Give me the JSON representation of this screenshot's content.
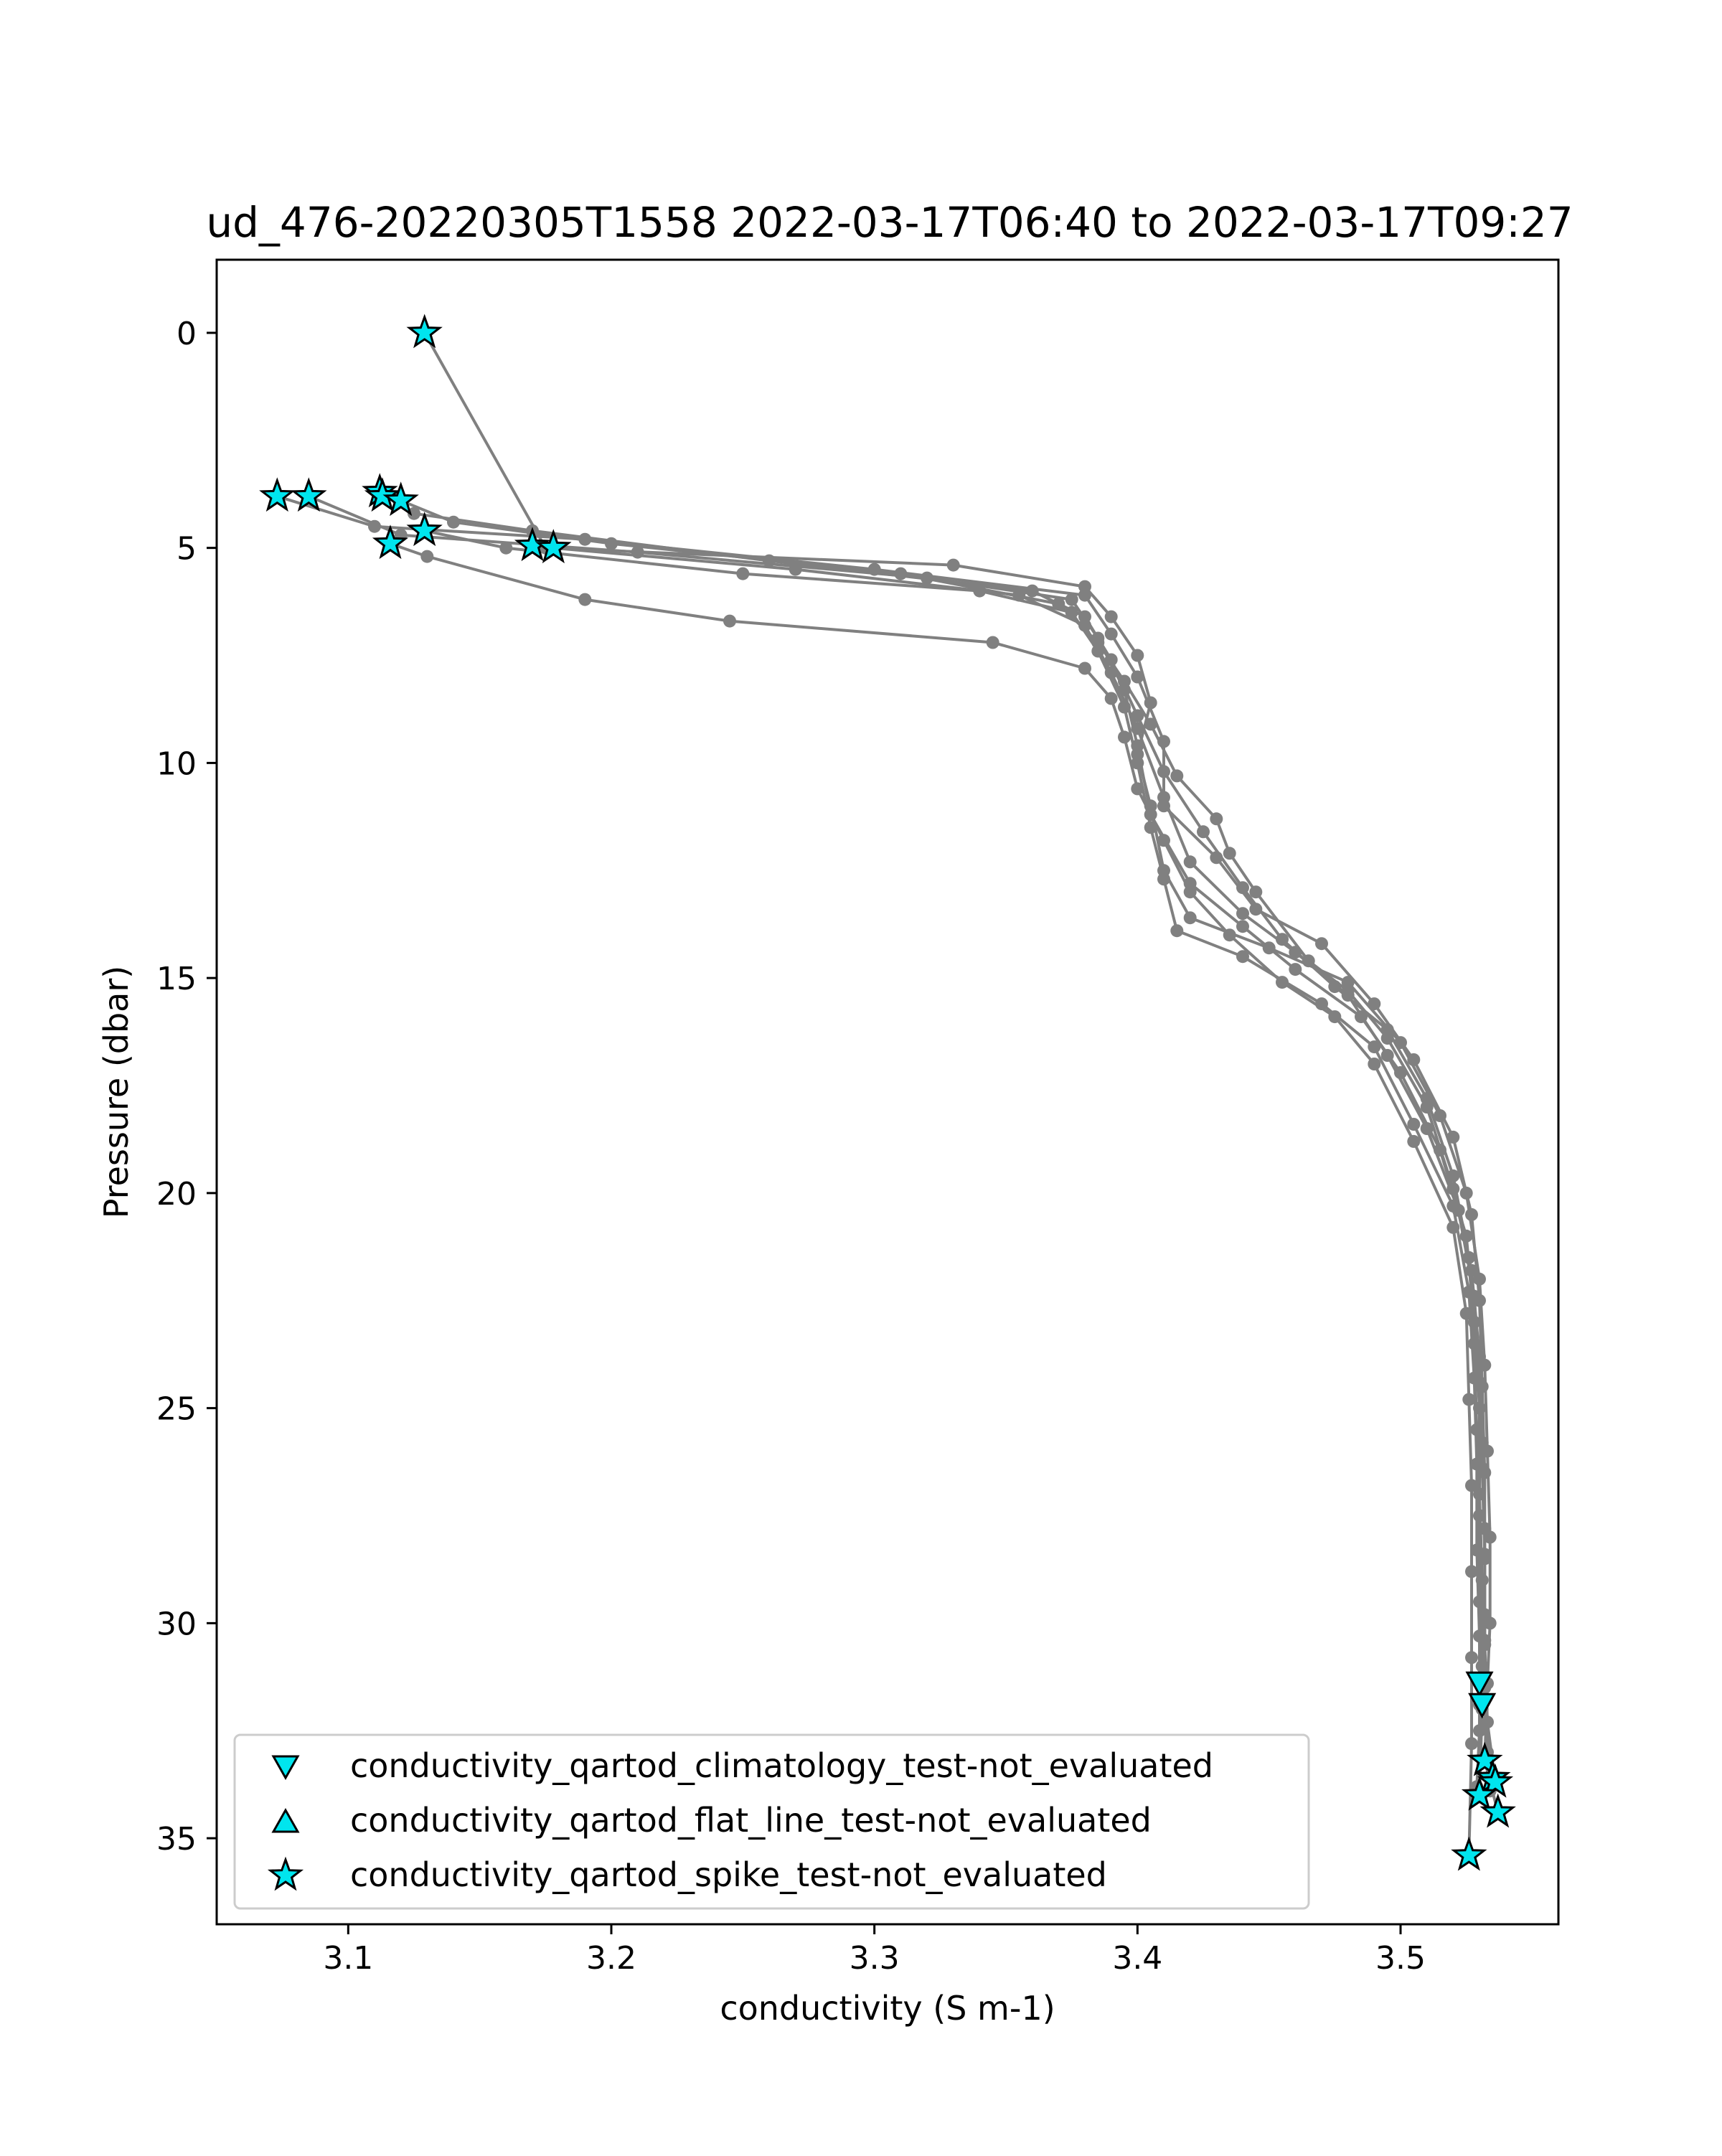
{
  "chart_data": {
    "type": "line",
    "title": "ud_476-20220305T1558 2022-03-17T06:40 to 2022-03-17T09:27",
    "xlabel": "conductivity (S m-1)",
    "ylabel": "Pressure (dbar)",
    "xlim": [
      3.05,
      3.56
    ],
    "ylim": [
      37.0,
      -1.7
    ],
    "y_inverted": true,
    "grid": false,
    "legend_position": "lower-left",
    "xticks": [
      3.1,
      3.2,
      3.3,
      3.4,
      3.5
    ],
    "xtick_labels": [
      "3.1",
      "3.2",
      "3.3",
      "3.4",
      "3.5"
    ],
    "yticks": [
      0,
      5,
      10,
      15,
      20,
      25,
      30,
      35
    ],
    "ytick_labels": [
      "0",
      "5",
      "10",
      "15",
      "20",
      "25",
      "30",
      "35"
    ],
    "colors": {
      "profile": "#808080",
      "flag_fill": "#00e5ee",
      "flag_edge": "#000000"
    },
    "profiles": [
      {
        "points": [
          [
            3.129,
            0.0
          ],
          [
            3.175,
            5.0
          ],
          [
            3.33,
            5.4
          ],
          [
            3.38,
            5.9
          ],
          [
            3.39,
            6.6
          ],
          [
            3.4,
            7.5
          ],
          [
            3.405,
            8.6
          ],
          [
            3.4,
            9.8
          ],
          [
            3.405,
            11.0
          ],
          [
            3.41,
            12.5
          ],
          [
            3.42,
            13.6
          ],
          [
            3.45,
            14.3
          ],
          [
            3.48,
            15.1
          ],
          [
            3.5,
            16.5
          ],
          [
            3.515,
            18.2
          ],
          [
            3.525,
            20.0
          ],
          [
            3.53,
            22.0
          ],
          [
            3.532,
            24.0
          ],
          [
            3.533,
            26.0
          ],
          [
            3.534,
            28.0
          ],
          [
            3.534,
            30.0
          ],
          [
            3.533,
            31.4
          ],
          [
            3.532,
            33.2
          ],
          [
            3.537,
            34.4
          ]
        ]
      },
      {
        "points": [
          [
            3.073,
            3.8
          ],
          [
            3.11,
            4.5
          ],
          [
            3.19,
            4.8
          ],
          [
            3.3,
            5.5
          ],
          [
            3.38,
            6.1
          ],
          [
            3.39,
            7.0
          ],
          [
            3.4,
            8.0
          ],
          [
            3.41,
            9.5
          ],
          [
            3.41,
            11.0
          ],
          [
            3.43,
            12.2
          ],
          [
            3.445,
            13.4
          ],
          [
            3.47,
            14.2
          ],
          [
            3.49,
            15.6
          ],
          [
            3.505,
            16.9
          ],
          [
            3.52,
            18.7
          ],
          [
            3.527,
            20.5
          ],
          [
            3.53,
            22.5
          ],
          [
            3.531,
            24.5
          ],
          [
            3.532,
            26.5
          ],
          [
            3.532,
            28.5
          ],
          [
            3.532,
            30.5
          ],
          [
            3.531,
            32.0
          ],
          [
            3.53,
            34.0
          ]
        ]
      },
      {
        "points": [
          [
            3.085,
            3.8
          ],
          [
            3.12,
            4.7
          ],
          [
            3.21,
            5.1
          ],
          [
            3.32,
            5.7
          ],
          [
            3.375,
            6.2
          ],
          [
            3.385,
            7.1
          ],
          [
            3.395,
            8.3
          ],
          [
            3.4,
            9.6
          ],
          [
            3.405,
            11.2
          ],
          [
            3.42,
            12.8
          ],
          [
            3.44,
            13.8
          ],
          [
            3.46,
            14.8
          ],
          [
            3.485,
            15.9
          ],
          [
            3.5,
            17.2
          ],
          [
            3.515,
            19.0
          ],
          [
            3.525,
            21.0
          ],
          [
            3.528,
            23.0
          ],
          [
            3.53,
            25.0
          ],
          [
            3.53,
            27.0
          ],
          [
            3.531,
            29.0
          ],
          [
            3.531,
            31.0
          ],
          [
            3.533,
            33.0
          ],
          [
            3.535,
            33.6
          ]
        ]
      },
      {
        "points": [
          [
            3.112,
            3.7
          ],
          [
            3.125,
            4.2
          ],
          [
            3.17,
            4.6
          ],
          [
            3.26,
            5.3
          ],
          [
            3.36,
            6.0
          ],
          [
            3.38,
            6.6
          ],
          [
            3.39,
            7.6
          ],
          [
            3.4,
            8.9
          ],
          [
            3.41,
            10.2
          ],
          [
            3.425,
            11.6
          ],
          [
            3.44,
            12.9
          ],
          [
            3.455,
            14.1
          ],
          [
            3.475,
            15.2
          ],
          [
            3.495,
            16.2
          ],
          [
            3.51,
            17.8
          ],
          [
            3.52,
            19.6
          ],
          [
            3.526,
            21.5
          ],
          [
            3.528,
            23.5
          ],
          [
            3.529,
            25.5
          ],
          [
            3.53,
            27.5
          ],
          [
            3.53,
            29.5
          ],
          [
            3.53,
            31.9
          ]
        ]
      },
      {
        "points": [
          [
            3.12,
            3.9
          ],
          [
            3.14,
            4.4
          ],
          [
            3.2,
            4.9
          ],
          [
            3.31,
            5.6
          ],
          [
            3.37,
            6.3
          ],
          [
            3.385,
            7.2
          ],
          [
            3.395,
            8.1
          ],
          [
            3.405,
            9.1
          ],
          [
            3.415,
            10.3
          ],
          [
            3.43,
            11.3
          ],
          [
            3.435,
            12.1
          ],
          [
            3.445,
            13.0
          ],
          [
            3.465,
            14.6
          ],
          [
            3.48,
            15.3
          ],
          [
            3.495,
            16.4
          ],
          [
            3.51,
            18.0
          ],
          [
            3.52,
            19.9
          ],
          [
            3.527,
            21.8
          ],
          [
            3.53,
            23.8
          ],
          [
            3.531,
            25.8
          ],
          [
            3.532,
            27.8
          ],
          [
            3.532,
            29.8
          ],
          [
            3.532,
            31.5
          ],
          [
            3.534,
            33.9
          ]
        ]
      },
      {
        "points": [
          [
            3.129,
            4.6
          ],
          [
            3.16,
            5.0
          ],
          [
            3.25,
            5.6
          ],
          [
            3.34,
            6.0
          ],
          [
            3.375,
            6.5
          ],
          [
            3.385,
            7.4
          ],
          [
            3.395,
            8.7
          ],
          [
            3.4,
            10.0
          ],
          [
            3.405,
            11.5
          ],
          [
            3.41,
            12.7
          ],
          [
            3.415,
            13.9
          ],
          [
            3.44,
            14.5
          ],
          [
            3.47,
            15.6
          ],
          [
            3.49,
            16.6
          ],
          [
            3.505,
            18.4
          ],
          [
            3.52,
            20.3
          ],
          [
            3.526,
            22.3
          ],
          [
            3.528,
            24.3
          ],
          [
            3.529,
            26.3
          ],
          [
            3.529,
            28.3
          ],
          [
            3.53,
            30.3
          ],
          [
            3.53,
            32.5
          ],
          [
            3.529,
            33.8
          ]
        ]
      },
      {
        "points": [
          [
            3.116,
            4.9
          ],
          [
            3.13,
            5.2
          ],
          [
            3.19,
            6.2
          ],
          [
            3.245,
            6.7
          ],
          [
            3.345,
            7.2
          ],
          [
            3.38,
            7.8
          ],
          [
            3.39,
            8.5
          ],
          [
            3.395,
            9.4
          ],
          [
            3.4,
            10.6
          ],
          [
            3.41,
            11.8
          ],
          [
            3.42,
            13.0
          ],
          [
            3.435,
            14.0
          ],
          [
            3.455,
            15.1
          ],
          [
            3.475,
            15.9
          ],
          [
            3.49,
            17.0
          ],
          [
            3.505,
            18.8
          ],
          [
            3.52,
            20.8
          ],
          [
            3.525,
            22.8
          ],
          [
            3.526,
            24.8
          ],
          [
            3.527,
            26.8
          ],
          [
            3.527,
            28.8
          ],
          [
            3.527,
            30.8
          ],
          [
            3.527,
            32.8
          ],
          [
            3.526,
            35.4
          ]
        ]
      },
      {
        "points": [
          [
            3.178,
            5.0
          ],
          [
            3.27,
            5.5
          ],
          [
            3.355,
            6.1
          ],
          [
            3.38,
            6.8
          ],
          [
            3.39,
            7.9
          ],
          [
            3.4,
            9.2
          ],
          [
            3.41,
            10.8
          ],
          [
            3.42,
            12.3
          ],
          [
            3.44,
            13.5
          ],
          [
            3.46,
            14.4
          ],
          [
            3.48,
            15.4
          ],
          [
            3.495,
            16.8
          ],
          [
            3.51,
            18.5
          ],
          [
            3.522,
            20.4
          ],
          [
            3.528,
            22.4
          ],
          [
            3.53,
            24.4
          ],
          [
            3.531,
            26.4
          ],
          [
            3.532,
            28.4
          ],
          [
            3.532,
            30.4
          ],
          [
            3.533,
            32.3
          ],
          [
            3.536,
            33.7
          ]
        ]
      }
    ],
    "series": [
      {
        "name": "conductivity_qartod_climatology_test-not_evaluated",
        "marker": "triangle-down",
        "points": [
          [
            3.53,
            31.4
          ],
          [
            3.531,
            31.9
          ]
        ]
      },
      {
        "name": "conductivity_qartod_flat_line_test-not_evaluated",
        "marker": "triangle-up",
        "points": []
      },
      {
        "name": "conductivity_qartod_spike_test-not_evaluated",
        "marker": "star",
        "points": [
          [
            3.129,
            0.0
          ],
          [
            3.073,
            3.8
          ],
          [
            3.085,
            3.8
          ],
          [
            3.112,
            3.7
          ],
          [
            3.113,
            3.8
          ],
          [
            3.12,
            3.9
          ],
          [
            3.116,
            4.9
          ],
          [
            3.129,
            4.6
          ],
          [
            3.17,
            4.95
          ],
          [
            3.178,
            5.0
          ],
          [
            3.532,
            33.2
          ],
          [
            3.535,
            33.6
          ],
          [
            3.536,
            33.7
          ],
          [
            3.53,
            34.0
          ],
          [
            3.537,
            34.4
          ],
          [
            3.526,
            35.4
          ]
        ]
      }
    ]
  }
}
